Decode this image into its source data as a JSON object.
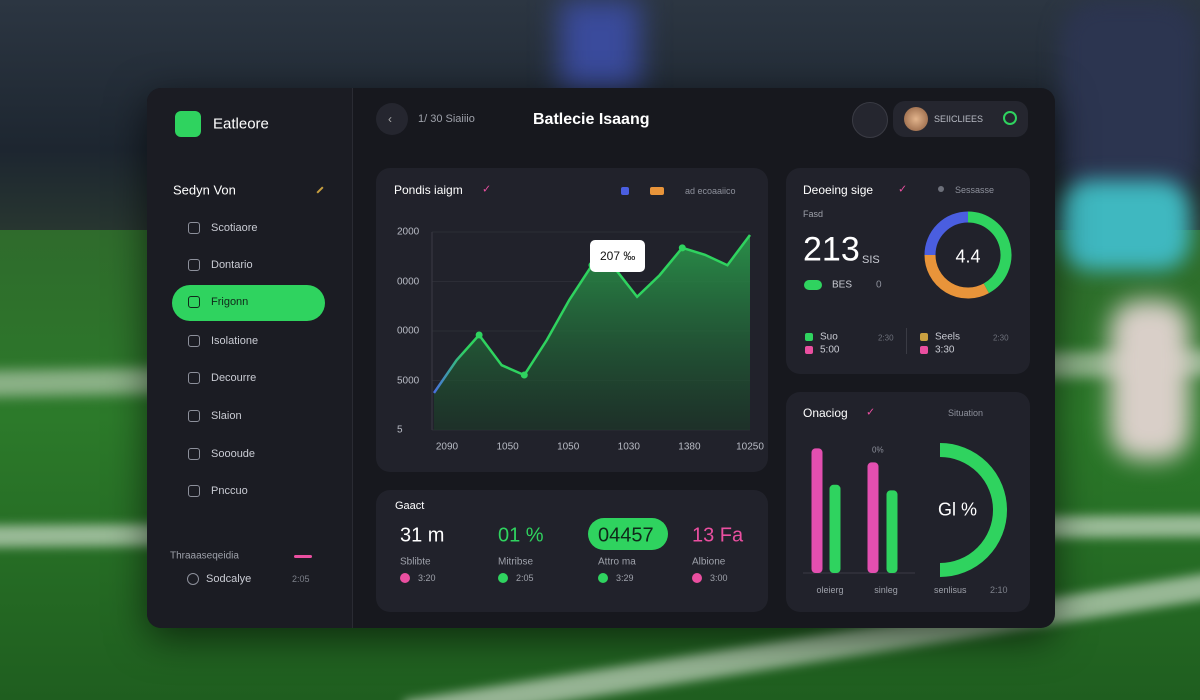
{
  "sidebar": {
    "brand": "Eatleore",
    "section": "Sedyn Von",
    "nav": [
      "Scotiaore",
      "Dontario",
      "Frigonn",
      "Isolatione",
      "Decourre",
      "Slaion",
      "Soooude",
      "Pnccuo"
    ],
    "footer": {
      "title": "Thraaaseqeidia",
      "item": "Sodcalye",
      "time": "2:05"
    }
  },
  "header": {
    "breadcrumb": "1/ 30 Siaiiio",
    "title": "Batlecie Isaang",
    "user": "SEIICLIEES"
  },
  "performance": {
    "title": "Pondis iaigm",
    "legend": "ad ecoaaiico",
    "tooltip": "207 ‰",
    "chart": {
      "type": "area",
      "values": [
        0.75,
        1.41,
        1.92,
        1.31,
        1.11,
        1.82,
        2.63,
        3.33,
        3.27,
        2.69,
        3.13,
        3.68,
        3.54,
        3.33,
        3.94
      ],
      "ylim": [
        0,
        4
      ],
      "yticks": [
        {
          "value": 4,
          "label": "2000"
        },
        {
          "value": 3,
          "label": "0000"
        },
        {
          "value": 2,
          "label": "0000"
        },
        {
          "value": 1,
          "label": "5000"
        },
        {
          "value": 0,
          "label": "5"
        }
      ],
      "x_labels": [
        "2090",
        "1050",
        "1050",
        "1030",
        "1380",
        "10250"
      ],
      "color": "#2fd35f"
    }
  },
  "stats": {
    "title": "Gaact",
    "items": [
      {
        "value": "31 m",
        "label": "Sblibte",
        "time": "3:20",
        "color": "#ea4fa0",
        "value_color": "#ffffff"
      },
      {
        "value": "01 %",
        "label": "Mitribse",
        "time": "2:05",
        "color": "#2fd35f",
        "value_color": "#2fd35f"
      },
      {
        "value": "04457",
        "label": "Attro ma",
        "time": "3:29",
        "color": "#2fd35f",
        "value_color": "#10291a"
      },
      {
        "value": "13 Fa",
        "label": "Albione",
        "time": "3:00",
        "color": "#ea4fa0",
        "value_color": "#ea4fa0"
      }
    ]
  },
  "donut": {
    "title": "Deoeing sige",
    "legend": "Sessasse",
    "caption": "Fasd",
    "value": "213",
    "unit": "SIS",
    "pill": "BES",
    "pill_note": "0",
    "center": "4.4",
    "segments": [
      {
        "value": 25,
        "color": "#4a5ee0"
      },
      {
        "value": 42,
        "color": "#2fd35f"
      },
      {
        "value": 33,
        "color": "#e8943a"
      }
    ],
    "legend_items": [
      {
        "label": "Suo",
        "sub": "5:00",
        "note": "2:30",
        "color": "#2fd35f"
      },
      {
        "label": "Seels",
        "sub": "3:30",
        "note": "2:30",
        "color": "#c9a040"
      }
    ]
  },
  "bars": {
    "title": "Onaciog",
    "legend": "Situation",
    "peak_label": "0%",
    "type": "bar",
    "values": [
      89,
      63,
      79,
      59
    ],
    "colors": [
      "#e34fb0",
      "#2fd35f",
      "#e34fb0",
      "#2fd35f"
    ],
    "ylim": [
      0,
      100
    ],
    "groups": [
      "oleierg",
      "sinleg"
    ],
    "gauge": {
      "label": "Gl %",
      "caption": "senlisus",
      "time": "2:10"
    }
  }
}
